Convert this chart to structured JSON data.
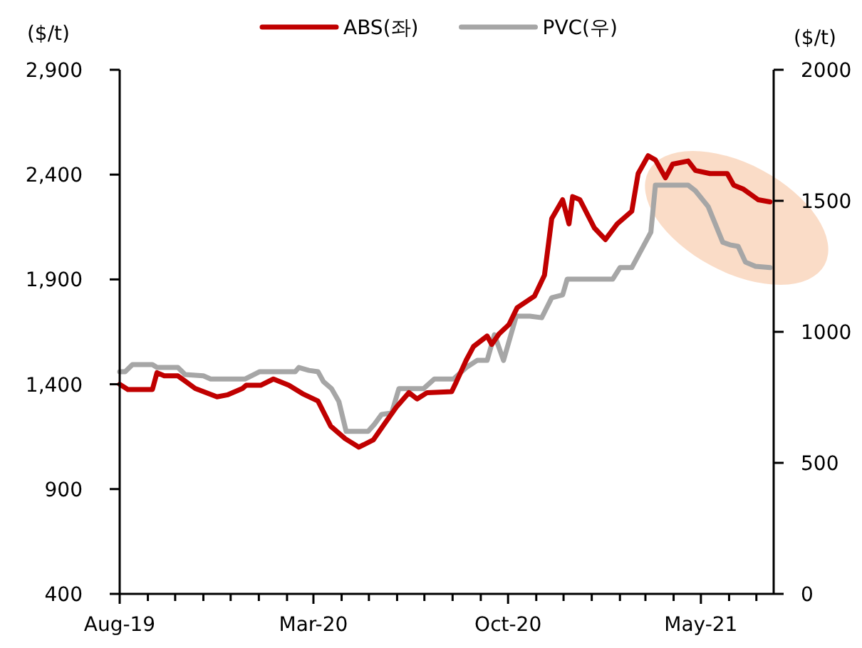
{
  "chart_data": {
    "type": "line",
    "ylabel": "($/t)",
    "y2label": "($/t)",
    "legend": "top",
    "xlim": [
      "2019-08-01",
      "2021-07-20"
    ],
    "xticks": [
      {
        "value": "2019-08",
        "label": "Aug-19"
      },
      {
        "value": "2019-09",
        "label": null
      },
      {
        "value": "2019-10",
        "label": null
      },
      {
        "value": "2019-11",
        "label": null
      },
      {
        "value": "2019-12",
        "label": null
      },
      {
        "value": "2020-01",
        "label": null
      },
      {
        "value": "2020-02",
        "label": null
      },
      {
        "value": "2020-03",
        "label": "Mar-20"
      },
      {
        "value": "2020-04",
        "label": null
      },
      {
        "value": "2020-05",
        "label": null
      },
      {
        "value": "2020-06",
        "label": null
      },
      {
        "value": "2020-07",
        "label": null
      },
      {
        "value": "2020-08",
        "label": null
      },
      {
        "value": "2020-09",
        "label": null
      },
      {
        "value": "2020-10",
        "label": "Oct-20"
      },
      {
        "value": "2020-11",
        "label": null
      },
      {
        "value": "2020-12",
        "label": null
      },
      {
        "value": "2021-01",
        "label": null
      },
      {
        "value": "2021-02",
        "label": null
      },
      {
        "value": "2021-03",
        "label": null
      },
      {
        "value": "2021-04",
        "label": null
      },
      {
        "value": "2021-05",
        "label": "May-21"
      },
      {
        "value": "2021-06",
        "label": null
      },
      {
        "value": "2021-07",
        "label": null
      }
    ],
    "ylim": [
      400,
      2900
    ],
    "yticks": [
      400,
      900,
      {
        "value": 1400,
        "label": "1,400"
      },
      {
        "value": 1900,
        "label": "1,900"
      },
      {
        "value": 2400,
        "label": "2,400"
      },
      {
        "value": 2900,
        "label": "2,900"
      }
    ],
    "y2lim": [
      0,
      2000
    ],
    "y2ticks": [
      0,
      500,
      1000,
      1500,
      2000
    ],
    "series": [
      {
        "name": "ABS(좌)",
        "color": "#c00000",
        "x": [
          "2019-08-01",
          "2019-08-10",
          "2019-09-06",
          "2019-09-11",
          "2019-09-19",
          "2019-10-04",
          "2019-10-23",
          "2019-11-16",
          "2019-11-28",
          "2019-12-14",
          "2019-12-18",
          "2020-01-03",
          "2020-01-17",
          "2020-02-03",
          "2020-02-18",
          "2020-03-06",
          "2020-03-20",
          "2020-04-05",
          "2020-04-20",
          "2020-05-06",
          "2020-05-18",
          "2020-05-31",
          "2020-06-14",
          "2020-06-23",
          "2020-07-04",
          "2020-07-31",
          "2020-08-05",
          "2020-08-16",
          "2020-08-24",
          "2020-09-08",
          "2020-09-13",
          "2020-09-21",
          "2020-10-02",
          "2020-10-11",
          "2020-10-30",
          "2020-11-10",
          "2020-11-18",
          "2020-11-30",
          "2020-12-07",
          "2020-12-11",
          "2020-12-19",
          "2021-01-04",
          "2021-01-16",
          "2021-01-29",
          "2021-02-14",
          "2021-02-21",
          "2021-03-04",
          "2021-03-12",
          "2021-03-23",
          "2021-03-31",
          "2021-04-17",
          "2021-04-25",
          "2021-05-11",
          "2021-05-30",
          "2021-06-06",
          "2021-06-17",
          "2021-07-03",
          "2021-07-16"
        ],
        "values": [
          1400,
          1375,
          1375,
          1455,
          1440,
          1440,
          1380,
          1340,
          1350,
          1380,
          1395,
          1395,
          1425,
          1395,
          1355,
          1320,
          1200,
          1140,
          1100,
          1135,
          1210,
          1290,
          1360,
          1330,
          1360,
          1365,
          1410,
          1515,
          1580,
          1630,
          1590,
          1640,
          1685,
          1765,
          1820,
          1920,
          2190,
          2280,
          2165,
          2295,
          2280,
          2145,
          2090,
          2165,
          2225,
          2405,
          2490,
          2470,
          2385,
          2450,
          2465,
          2420,
          2405,
          2405,
          2350,
          2330,
          2280,
          2270
        ]
      },
      {
        "name": "PVC(우)",
        "color": "#a6a6a6",
        "axis": "y2",
        "x": [
          "2019-08-01",
          "2019-08-07",
          "2019-08-15",
          "2019-09-06",
          "2019-09-11",
          "2019-10-04",
          "2019-10-12",
          "2019-11-01",
          "2019-11-09",
          "2019-12-17",
          "2020-01-02",
          "2020-02-10",
          "2020-02-14",
          "2020-02-25",
          "2020-03-06",
          "2020-03-12",
          "2020-03-21",
          "2020-03-29",
          "2020-04-06",
          "2020-04-30",
          "2020-05-07",
          "2020-05-15",
          "2020-05-26",
          "2020-06-03",
          "2020-06-30",
          "2020-07-12",
          "2020-08-02",
          "2020-08-16",
          "2020-08-28",
          "2020-09-08",
          "2020-09-16",
          "2020-09-26",
          "2020-10-10",
          "2020-10-25",
          "2020-11-07",
          "2020-11-18",
          "2020-11-30",
          "2020-12-05",
          "2021-01-24",
          "2021-02-01",
          "2021-02-14",
          "2021-03-07",
          "2021-03-12",
          "2021-04-17",
          "2021-04-25",
          "2021-05-09",
          "2021-05-25",
          "2021-06-02",
          "2021-06-11",
          "2021-06-19",
          "2021-06-30",
          "2021-07-16"
        ],
        "values": [
          848,
          848,
          875,
          875,
          864,
          864,
          837,
          832,
          820,
          820,
          848,
          848,
          864,
          853,
          848,
          810,
          783,
          734,
          620,
          620,
          647,
          685,
          690,
          783,
          783,
          820,
          820,
          864,
          891,
          891,
          989,
          891,
          1060,
          1060,
          1054,
          1130,
          1141,
          1201,
          1201,
          1245,
          1245,
          1380,
          1560,
          1560,
          1538,
          1478,
          1342,
          1332,
          1326,
          1266,
          1250,
          1245
        ]
      }
    ]
  }
}
